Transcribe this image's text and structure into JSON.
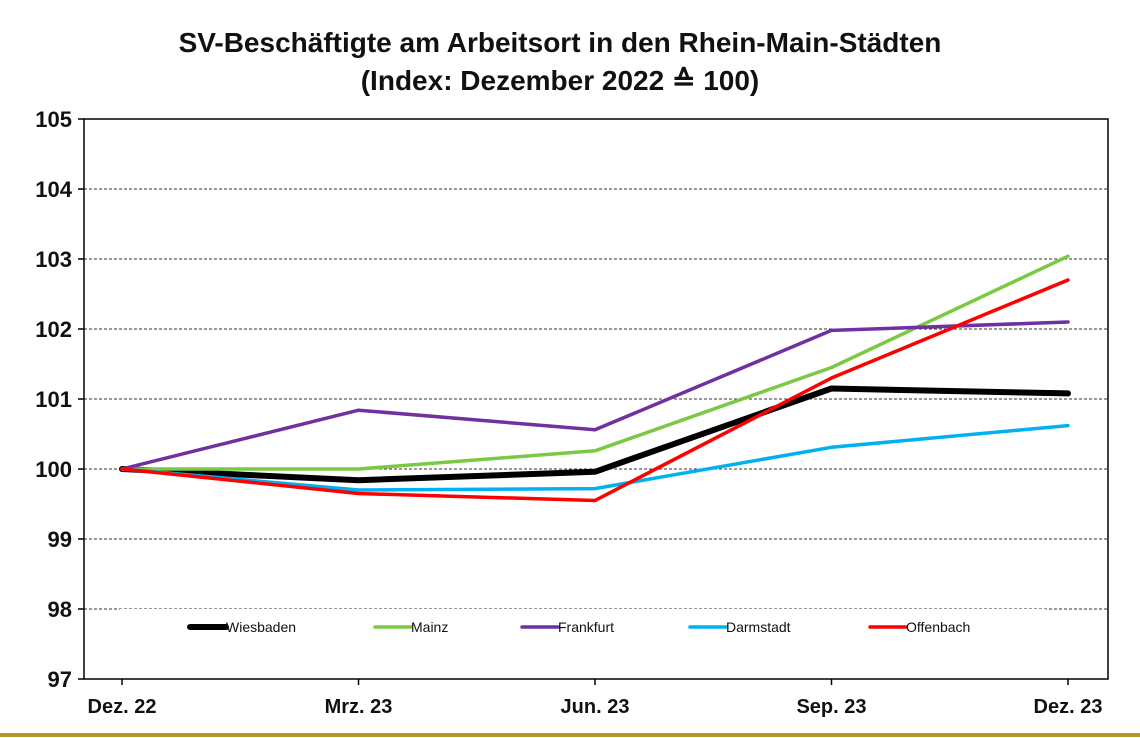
{
  "chart_data": {
    "type": "line",
    "title": "SV-Beschäftigte am Arbeitsort in den Rhein-Main-Städten",
    "subtitle": "(Index: Dezember 2022 ≙ 100)",
    "categories": [
      "Dez. 22",
      "Mrz. 23",
      "Jun. 23",
      "Sep. 23",
      "Dez. 23"
    ],
    "y_ticks": [
      "97",
      "98",
      "99",
      "100",
      "101",
      "102",
      "103",
      "104",
      "105"
    ],
    "ylim": [
      97,
      105
    ],
    "grid": "horizontal-dashed",
    "legend_position": "bottom-inside",
    "series": [
      {
        "name": "Wiesbaden",
        "color": "#000000",
        "values": [
          100.0,
          99.84,
          99.96,
          101.15,
          101.08
        ]
      },
      {
        "name": "Mainz",
        "color": "#7ac943",
        "values": [
          100.0,
          100.0,
          100.26,
          101.45,
          103.04
        ]
      },
      {
        "name": "Frankfurt",
        "color": "#7030a0",
        "values": [
          100.0,
          100.84,
          100.56,
          101.98,
          102.1
        ]
      },
      {
        "name": "Darmstadt",
        "color": "#00b0f0",
        "values": [
          100.0,
          99.7,
          99.72,
          100.31,
          100.62
        ]
      },
      {
        "name": "Offenbach",
        "color": "#ff0000",
        "values": [
          100.0,
          99.65,
          99.55,
          101.3,
          102.7
        ]
      }
    ]
  }
}
